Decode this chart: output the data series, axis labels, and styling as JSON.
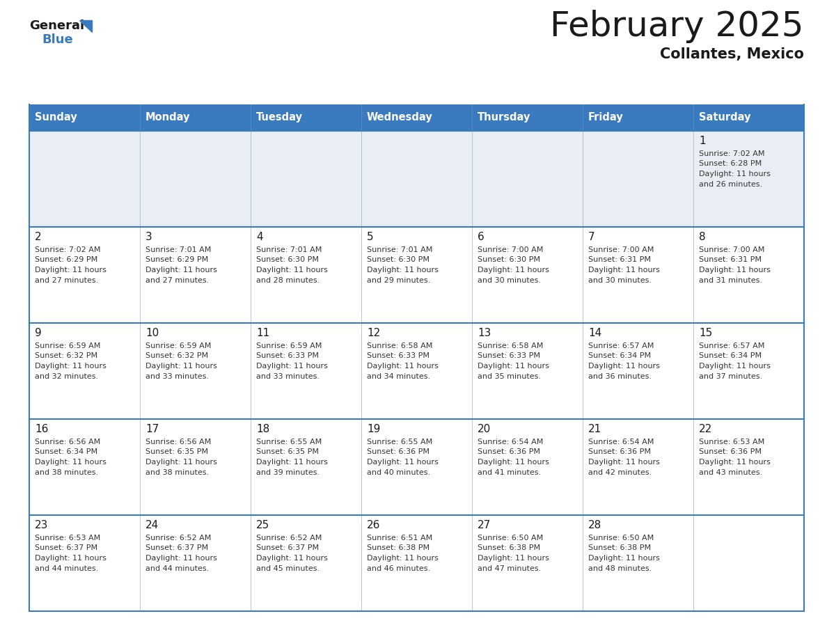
{
  "title": "February 2025",
  "subtitle": "Collantes, Mexico",
  "header_bg": "#3a7abf",
  "header_text": "#ffffff",
  "day_names": [
    "Sunday",
    "Monday",
    "Tuesday",
    "Wednesday",
    "Thursday",
    "Friday",
    "Saturday"
  ],
  "row_bg_first": "#e8eef4",
  "row_bg_normal": "#ffffff",
  "cell_border_color": "#3a7abf",
  "day_number_color": "#1a1a1a",
  "info_color": "#333333",
  "calendar": [
    [
      null,
      null,
      null,
      null,
      null,
      null,
      {
        "day": 1,
        "sunrise": "7:02 AM",
        "sunset": "6:28 PM",
        "daylight_line1": "Daylight: 11 hours",
        "daylight_line2": "and 26 minutes."
      }
    ],
    [
      {
        "day": 2,
        "sunrise": "7:02 AM",
        "sunset": "6:29 PM",
        "daylight_line1": "Daylight: 11 hours",
        "daylight_line2": "and 27 minutes."
      },
      {
        "day": 3,
        "sunrise": "7:01 AM",
        "sunset": "6:29 PM",
        "daylight_line1": "Daylight: 11 hours",
        "daylight_line2": "and 27 minutes."
      },
      {
        "day": 4,
        "sunrise": "7:01 AM",
        "sunset": "6:30 PM",
        "daylight_line1": "Daylight: 11 hours",
        "daylight_line2": "and 28 minutes."
      },
      {
        "day": 5,
        "sunrise": "7:01 AM",
        "sunset": "6:30 PM",
        "daylight_line1": "Daylight: 11 hours",
        "daylight_line2": "and 29 minutes."
      },
      {
        "day": 6,
        "sunrise": "7:00 AM",
        "sunset": "6:30 PM",
        "daylight_line1": "Daylight: 11 hours",
        "daylight_line2": "and 30 minutes."
      },
      {
        "day": 7,
        "sunrise": "7:00 AM",
        "sunset": "6:31 PM",
        "daylight_line1": "Daylight: 11 hours",
        "daylight_line2": "and 30 minutes."
      },
      {
        "day": 8,
        "sunrise": "7:00 AM",
        "sunset": "6:31 PM",
        "daylight_line1": "Daylight: 11 hours",
        "daylight_line2": "and 31 minutes."
      }
    ],
    [
      {
        "day": 9,
        "sunrise": "6:59 AM",
        "sunset": "6:32 PM",
        "daylight_line1": "Daylight: 11 hours",
        "daylight_line2": "and 32 minutes."
      },
      {
        "day": 10,
        "sunrise": "6:59 AM",
        "sunset": "6:32 PM",
        "daylight_line1": "Daylight: 11 hours",
        "daylight_line2": "and 33 minutes."
      },
      {
        "day": 11,
        "sunrise": "6:59 AM",
        "sunset": "6:33 PM",
        "daylight_line1": "Daylight: 11 hours",
        "daylight_line2": "and 33 minutes."
      },
      {
        "day": 12,
        "sunrise": "6:58 AM",
        "sunset": "6:33 PM",
        "daylight_line1": "Daylight: 11 hours",
        "daylight_line2": "and 34 minutes."
      },
      {
        "day": 13,
        "sunrise": "6:58 AM",
        "sunset": "6:33 PM",
        "daylight_line1": "Daylight: 11 hours",
        "daylight_line2": "and 35 minutes."
      },
      {
        "day": 14,
        "sunrise": "6:57 AM",
        "sunset": "6:34 PM",
        "daylight_line1": "Daylight: 11 hours",
        "daylight_line2": "and 36 minutes."
      },
      {
        "day": 15,
        "sunrise": "6:57 AM",
        "sunset": "6:34 PM",
        "daylight_line1": "Daylight: 11 hours",
        "daylight_line2": "and 37 minutes."
      }
    ],
    [
      {
        "day": 16,
        "sunrise": "6:56 AM",
        "sunset": "6:34 PM",
        "daylight_line1": "Daylight: 11 hours",
        "daylight_line2": "and 38 minutes."
      },
      {
        "day": 17,
        "sunrise": "6:56 AM",
        "sunset": "6:35 PM",
        "daylight_line1": "Daylight: 11 hours",
        "daylight_line2": "and 38 minutes."
      },
      {
        "day": 18,
        "sunrise": "6:55 AM",
        "sunset": "6:35 PM",
        "daylight_line1": "Daylight: 11 hours",
        "daylight_line2": "and 39 minutes."
      },
      {
        "day": 19,
        "sunrise": "6:55 AM",
        "sunset": "6:36 PM",
        "daylight_line1": "Daylight: 11 hours",
        "daylight_line2": "and 40 minutes."
      },
      {
        "day": 20,
        "sunrise": "6:54 AM",
        "sunset": "6:36 PM",
        "daylight_line1": "Daylight: 11 hours",
        "daylight_line2": "and 41 minutes."
      },
      {
        "day": 21,
        "sunrise": "6:54 AM",
        "sunset": "6:36 PM",
        "daylight_line1": "Daylight: 11 hours",
        "daylight_line2": "and 42 minutes."
      },
      {
        "day": 22,
        "sunrise": "6:53 AM",
        "sunset": "6:36 PM",
        "daylight_line1": "Daylight: 11 hours",
        "daylight_line2": "and 43 minutes."
      }
    ],
    [
      {
        "day": 23,
        "sunrise": "6:53 AM",
        "sunset": "6:37 PM",
        "daylight_line1": "Daylight: 11 hours",
        "daylight_line2": "and 44 minutes."
      },
      {
        "day": 24,
        "sunrise": "6:52 AM",
        "sunset": "6:37 PM",
        "daylight_line1": "Daylight: 11 hours",
        "daylight_line2": "and 44 minutes."
      },
      {
        "day": 25,
        "sunrise": "6:52 AM",
        "sunset": "6:37 PM",
        "daylight_line1": "Daylight: 11 hours",
        "daylight_line2": "and 45 minutes."
      },
      {
        "day": 26,
        "sunrise": "6:51 AM",
        "sunset": "6:38 PM",
        "daylight_line1": "Daylight: 11 hours",
        "daylight_line2": "and 46 minutes."
      },
      {
        "day": 27,
        "sunrise": "6:50 AM",
        "sunset": "6:38 PM",
        "daylight_line1": "Daylight: 11 hours",
        "daylight_line2": "and 47 minutes."
      },
      {
        "day": 28,
        "sunrise": "6:50 AM",
        "sunset": "6:38 PM",
        "daylight_line1": "Daylight: 11 hours",
        "daylight_line2": "and 48 minutes."
      },
      null
    ]
  ]
}
